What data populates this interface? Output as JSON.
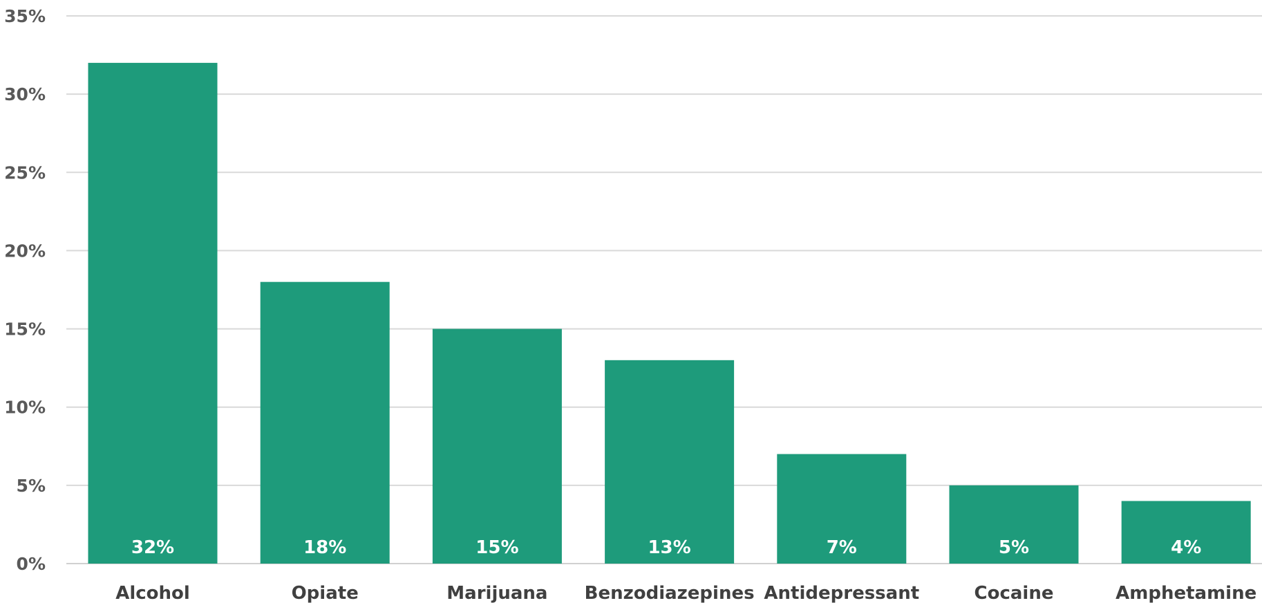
{
  "chart_data": {
    "type": "bar",
    "title": "",
    "xlabel": "",
    "ylabel": "",
    "categories": [
      "Alcohol",
      "Opiate",
      "Marijuana",
      "Benzodiazepines",
      "Antidepressant",
      "Cocaine",
      "Amphetamine"
    ],
    "values": [
      32,
      18,
      15,
      13,
      7,
      5,
      4
    ],
    "value_labels": [
      "32%",
      "18%",
      "15%",
      "13%",
      "7%",
      "5%",
      "4%"
    ],
    "ylim": [
      0,
      35
    ],
    "yticks": [
      0,
      5,
      10,
      15,
      20,
      25,
      30,
      35
    ],
    "ytick_labels": [
      "0%",
      "5%",
      "10%",
      "15%",
      "20%",
      "25%",
      "30%",
      "35%"
    ],
    "grid": true,
    "legend": "none",
    "bar_color": "#1e9b7b",
    "label_color": "#ffffff"
  }
}
